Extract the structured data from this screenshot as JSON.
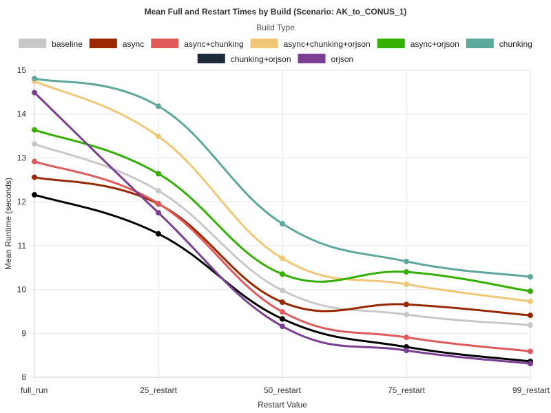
{
  "chart_data": {
    "type": "line",
    "title": "Mean Full and Restart Times by Build (Scenario: AK_to_CONUS_1)",
    "legend_title": "Build Type",
    "legend_position": "top",
    "xlabel": "Restart Value",
    "ylabel": "Mean Runtime (seconds)",
    "categories": [
      "full_run",
      "25_restart",
      "50_restart",
      "75_restart",
      "99_restart"
    ],
    "ylim": [
      8,
      15
    ],
    "yticks": [
      8,
      9,
      10,
      11,
      12,
      13,
      14,
      15
    ],
    "grid": true,
    "series": [
      {
        "name": "baseline",
        "color": "#c8c8c8",
        "values": [
          13.32,
          12.25,
          9.98,
          9.43,
          9.19
        ]
      },
      {
        "name": "async",
        "color": "#992800",
        "values": [
          12.56,
          11.95,
          9.71,
          9.66,
          9.41
        ]
      },
      {
        "name": "async+chunking",
        "color": "#e05a5a",
        "values": [
          12.92,
          11.96,
          9.49,
          8.91,
          8.59
        ]
      },
      {
        "name": "async+chunking+orjson",
        "color": "#f0c775",
        "values": [
          14.75,
          13.49,
          10.71,
          10.12,
          9.73
        ]
      },
      {
        "name": "async+orjson",
        "color": "#33b000",
        "values": [
          13.64,
          12.64,
          10.35,
          10.4,
          9.96
        ]
      },
      {
        "name": "chunking",
        "color": "#5ca89a",
        "values": [
          14.81,
          14.18,
          11.5,
          10.64,
          10.29
        ]
      },
      {
        "name": "chunking+orjson",
        "color": "#000000",
        "legend_color": "#1e2a3a",
        "values": [
          12.16,
          11.27,
          9.33,
          8.69,
          8.36
        ]
      },
      {
        "name": "orjson",
        "color": "#7b3f94",
        "values": [
          14.49,
          11.75,
          9.16,
          8.61,
          8.31
        ]
      }
    ]
  }
}
